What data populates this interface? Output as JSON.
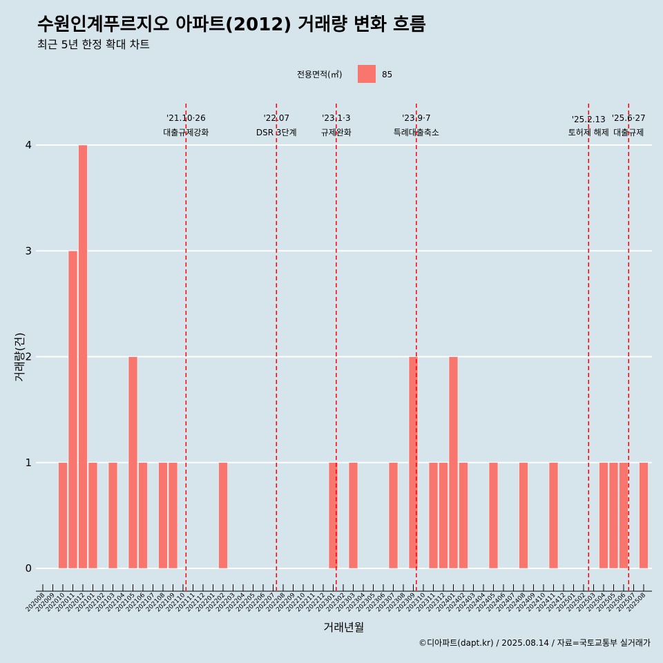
{
  "chart_data": {
    "type": "bar",
    "title": "수원인계푸르지오 아파트(2012) 거래량 변화 흐름",
    "subtitle": "최근 5년 한정 확대 차트",
    "xlabel": "거래년월",
    "ylabel": "거래량(건)",
    "ylim": [
      0,
      4
    ],
    "yticks": [
      0,
      1,
      2,
      3,
      4
    ],
    "grid": true,
    "legend": {
      "title": "전용면적(㎡)",
      "position": "top",
      "entries": [
        {
          "label": "85",
          "color": "#f8766d"
        }
      ]
    },
    "categories": [
      "202008",
      "202009",
      "202010",
      "202011",
      "202012",
      "202101",
      "202102",
      "202103",
      "202104",
      "202105",
      "202106",
      "202107",
      "202108",
      "202109",
      "202110",
      "202111",
      "202112",
      "202201",
      "202202",
      "202203",
      "202204",
      "202205",
      "202206",
      "202207",
      "202208",
      "202209",
      "202210",
      "202211",
      "202212",
      "202301",
      "202302",
      "202303",
      "202304",
      "202305",
      "202306",
      "202307",
      "202308",
      "202309",
      "202310",
      "202311",
      "202312",
      "202401",
      "202402",
      "202403",
      "202404",
      "202405",
      "202406",
      "202407",
      "202408",
      "202409",
      "202410",
      "202411",
      "202412",
      "202501",
      "202502",
      "202503",
      "202504",
      "202505",
      "202506",
      "202507",
      "202508"
    ],
    "series": [
      {
        "name": "85",
        "color": "#f8766d",
        "values": [
          0,
          0,
          1,
          3,
          4,
          1,
          0,
          1,
          0,
          2,
          1,
          0,
          1,
          1,
          0,
          0,
          0,
          0,
          1,
          0,
          0,
          0,
          0,
          0,
          0,
          0,
          0,
          0,
          0,
          1,
          0,
          1,
          0,
          0,
          0,
          1,
          0,
          2,
          0,
          1,
          1,
          2,
          1,
          0,
          0,
          1,
          0,
          0,
          1,
          0,
          0,
          1,
          0,
          0,
          0,
          0,
          1,
          1,
          1,
          0,
          1
        ]
      }
    ],
    "annotations": [
      {
        "date": "'21.10·26",
        "label": "대출규제강화",
        "x": 14.3
      },
      {
        "date": "'22.07",
        "label": "DSR 3단계",
        "x": 23.33
      },
      {
        "date": "'23.1·3",
        "label": "규제완화",
        "x": 29.3
      },
      {
        "date": "'23.9·7",
        "label": "특례대출축소",
        "x": 37.3
      },
      {
        "date": "'25.2.13",
        "label": "토허제 해제",
        "x": 54.5
      },
      {
        "date": "'25.6·27",
        "label": "대출규제",
        "x": 58.5
      }
    ],
    "caption": "©디아파트(dapt.kr) / 2025.08.14 / 자료=국토교통부 실거래가"
  }
}
